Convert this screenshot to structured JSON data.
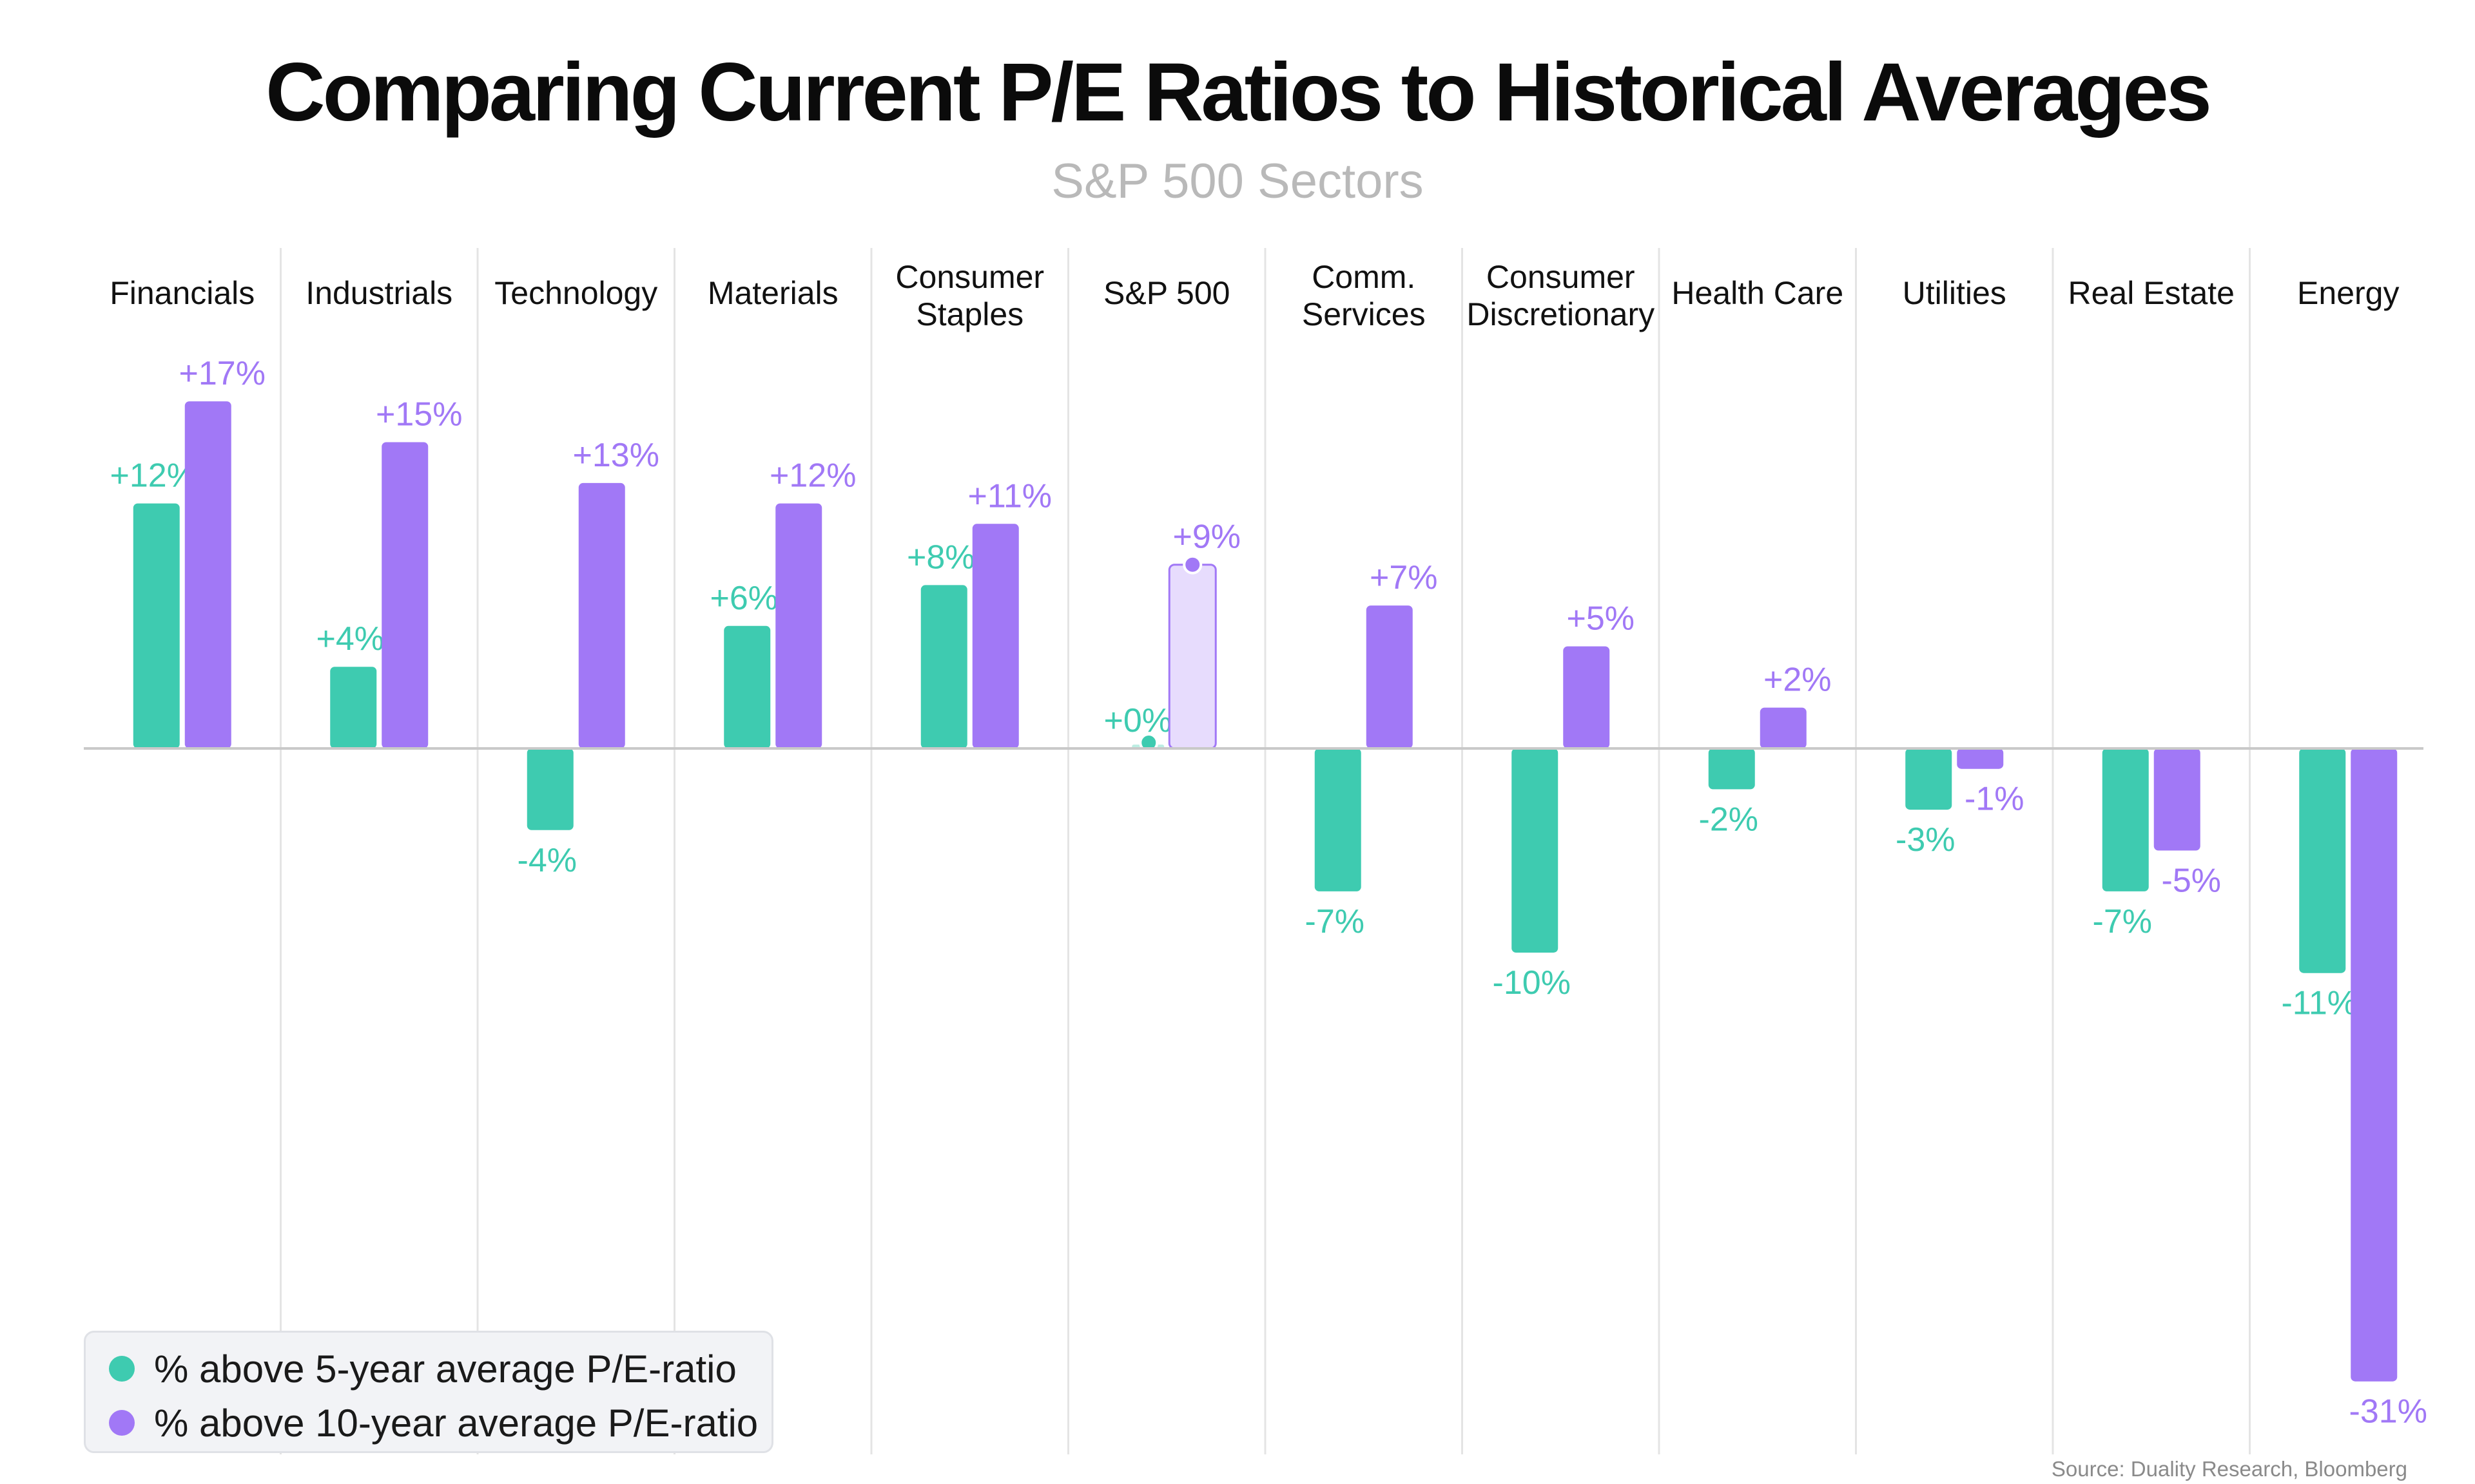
{
  "title": "Comparing Current P/E Ratios to Historical Averages",
  "subtitle": "S&P 500 Sectors",
  "source": "Source: Duality Research, Bloomberg",
  "colors": {
    "five_year": "#3ecbb0",
    "ten_year": "#a178f6",
    "highlight_fill": "#e7dcfd",
    "gridline": "#e4e4e4",
    "zero_line": "#c9c9c9",
    "category_text": "#111111"
  },
  "legend": {
    "position": "bottom-left",
    "items": [
      {
        "label": "% above 5-year average P/E-ratio",
        "color": "#3ecbb0"
      },
      {
        "label": "% above 10-year average P/E-ratio",
        "color": "#a178f6"
      }
    ]
  },
  "chart_data": {
    "type": "bar",
    "categories": [
      [
        "Financials"
      ],
      [
        "Industrials"
      ],
      [
        "Technology"
      ],
      [
        "Materials"
      ],
      [
        "Consumer",
        "Staples"
      ],
      [
        "S&P 500"
      ],
      [
        "Comm.",
        "Services"
      ],
      [
        "Consumer",
        "Discretionary"
      ],
      [
        "Health Care"
      ],
      [
        "Utilities"
      ],
      [
        "Real Estate"
      ],
      [
        "Energy"
      ]
    ],
    "highlight_category_index": 5,
    "series": [
      {
        "name": "% above 5-year average P/E-ratio",
        "color": "#3ecbb0",
        "values": [
          12,
          4,
          -4,
          6,
          8,
          0,
          -7,
          -10,
          -2,
          -3,
          -7,
          -11
        ],
        "labels": [
          "+12%",
          "+4%",
          "-4%",
          "+6%",
          "+8%",
          "+0%",
          "-7%",
          "-10%",
          "-2%",
          "-3%",
          "-7%",
          "-11%"
        ]
      },
      {
        "name": "% above 10-year average P/E-ratio",
        "color": "#a178f6",
        "values": [
          17,
          15,
          13,
          12,
          11,
          9,
          7,
          5,
          2,
          -1,
          -5,
          -31
        ],
        "labels": [
          "+17%",
          "+15%",
          "+13%",
          "+12%",
          "+11%",
          "+9%",
          "+7%",
          "+5%",
          "+2%",
          "-1%",
          "-5%",
          "-31%"
        ]
      }
    ],
    "ylim": [
      -31,
      17
    ],
    "grid": "vertical separators between categories",
    "xlabel": "",
    "ylabel": ""
  }
}
